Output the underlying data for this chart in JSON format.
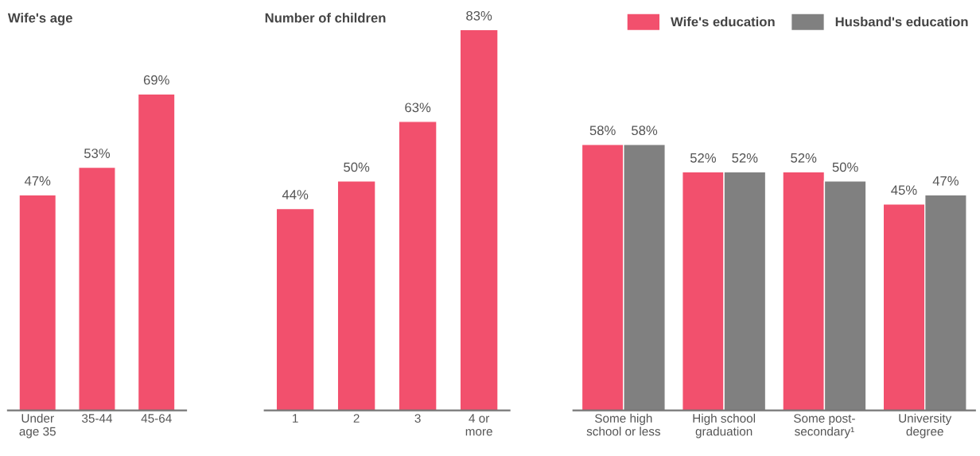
{
  "chart_data": [
    {
      "type": "bar",
      "title": "Wife's age",
      "categories": [
        "Under\nage 35",
        "35-44",
        "45-64"
      ],
      "series": [
        {
          "color": "#f2506d",
          "values": [
            47,
            53,
            69
          ],
          "value_labels": [
            "47%",
            "53%",
            "69%"
          ]
        }
      ]
    },
    {
      "type": "bar",
      "title": "Number of children",
      "categories": [
        "1",
        "2",
        "3",
        "4 or\nmore"
      ],
      "series": [
        {
          "color": "#f2506d",
          "values": [
            44,
            50,
            63,
            83
          ],
          "value_labels": [
            "44%",
            "50%",
            "63%",
            "83%"
          ]
        }
      ]
    },
    {
      "type": "bar",
      "legend": "top right",
      "categories": [
        "Some high\nschool or less",
        "High school\ngraduation",
        "Some post-\nsecondary¹",
        "University\ndegree"
      ],
      "series": [
        {
          "name": "Wife's education",
          "color": "#f2506d",
          "values": [
            58,
            52,
            52,
            45
          ],
          "value_labels": [
            "58%",
            "52%",
            "52%",
            "45%"
          ]
        },
        {
          "name": "Husband's education",
          "color": "#808080",
          "values": [
            58,
            52,
            50,
            47
          ],
          "value_labels": [
            "58%",
            "52%",
            "50%",
            "47%"
          ]
        }
      ]
    }
  ]
}
